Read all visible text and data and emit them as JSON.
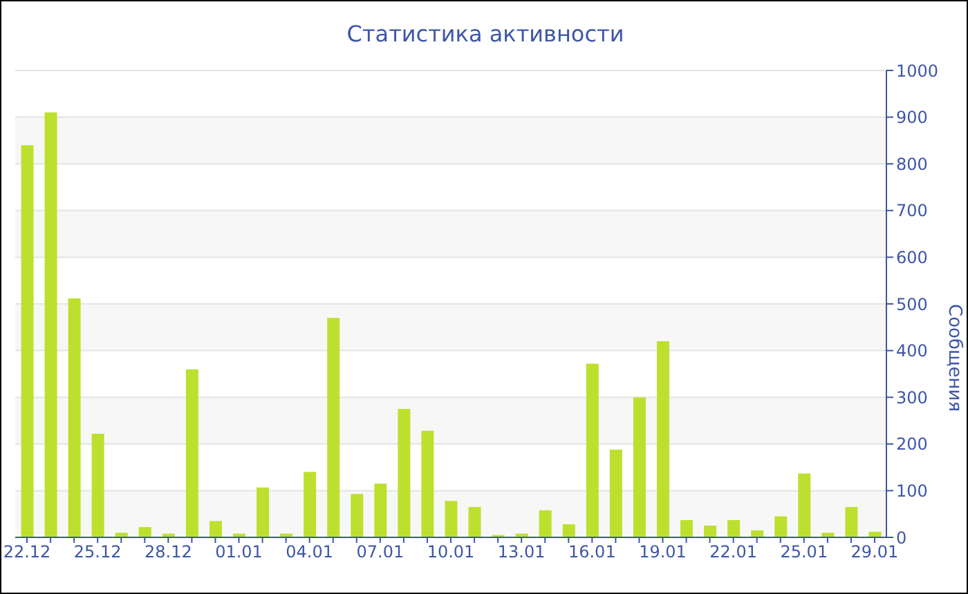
{
  "chart_data": {
    "type": "bar",
    "title": "Статистика активности",
    "ylabel": "Сообщения",
    "categories": [
      "22.12",
      null,
      null,
      "25.12",
      null,
      null,
      "28.12",
      null,
      null,
      "01.01",
      null,
      null,
      "04.01",
      null,
      null,
      "07.01",
      null,
      null,
      "10.01",
      null,
      null,
      "13.01",
      null,
      null,
      "16.01",
      null,
      null,
      "19.01",
      null,
      null,
      "22.01",
      null,
      null,
      "25.01",
      null,
      null,
      "29.01"
    ],
    "values": [
      840,
      910,
      512,
      222,
      10,
      22,
      8,
      360,
      35,
      8,
      107,
      8,
      140,
      470,
      93,
      115,
      275,
      228,
      78,
      65,
      5,
      8,
      58,
      28,
      372,
      188,
      300,
      420,
      37,
      25,
      37,
      15,
      45,
      137,
      10,
      65,
      12
    ],
    "color": "#bde02f",
    "ylim": [
      0,
      1000
    ],
    "yticks": [
      0,
      100,
      200,
      300,
      400,
      500,
      600,
      700,
      800,
      900,
      1000
    ],
    "grid": "y",
    "legend": false
  }
}
